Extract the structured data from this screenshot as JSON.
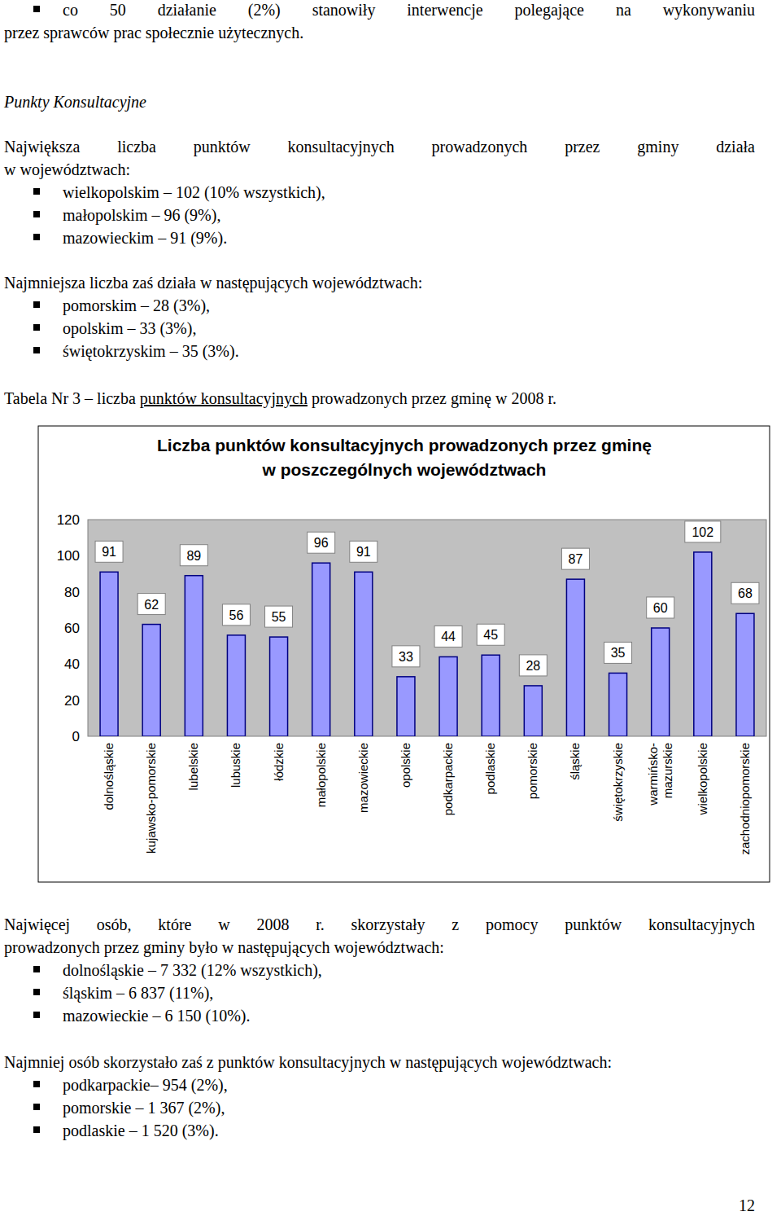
{
  "document": {
    "intro_bullet": [
      "co 50 działanie (2%) stanowiły interwencje polegające na wykonywaniu",
      "przez sprawców prac społecznie użytecznych."
    ],
    "section_title": "Punkty Konsultacyjne",
    "paragraphs": [
      {
        "lines": [
          "Największa liczba punktów konsultacyjnych prowadzonych przez gminy działa",
          "w województwach:"
        ],
        "bullets": [
          "wielkopolskim – 102 (10% wszystkich),",
          "małopolskim – 96 (9%),",
          "mazowieckim – 91 (9%)."
        ]
      },
      {
        "lines": [
          "Najmniejsza liczba zaś działa w następujących województwach:"
        ],
        "bullets": [
          "pomorskim – 28 (3%),",
          "opolskim – 33 (3%),",
          "świętokrzyskim – 35 (3%)."
        ]
      },
      {
        "lines": [
          "Najwięcej osób, które w 2008 r. skorzystały z pomocy punktów konsultacyjnych",
          "prowadzonych przez gminy było w następujących województwach:"
        ],
        "bullets": [
          "dolnośląskie – 7 332 (12% wszystkich),",
          "śląskim – 6 837 (11%),",
          "mazowieckie – 6 150 (10%)."
        ]
      },
      {
        "lines": [
          "Najmniej osób skorzystało zaś z punktów konsultacyjnych w następujących województwach:"
        ],
        "bullets": [
          "podkarpackie– 954 (2%),",
          "pomorskie – 1 367 (2%),",
          "podlaskie – 1 520 (3%)."
        ]
      }
    ],
    "table_caption": {
      "before": "Tabela Nr 3 – liczba ",
      "underlined": "punktów konsultacyjnych",
      "after": " prowadzonych przez gminę w 2008 r."
    },
    "page_number": "12"
  },
  "chart_data": {
    "type": "bar",
    "title": "Liczba punktów konsultacyjnych prowadzonych przez gminę\nw poszczególnych województwach",
    "categories": [
      "dolnośląskie",
      "kujawsko-pomorskie",
      "lubelskie",
      "lubuskie",
      "łódzkie",
      "małopolskie",
      "mazowieckie",
      "opolskie",
      "podkarpackie",
      "podlaskie",
      "pomorskie",
      "śląskie",
      "świętokrzyskie",
      "warmińsko-\nmazurskie",
      "wielkopolskie",
      "zachodniopomorskie"
    ],
    "values": [
      91,
      62,
      89,
      56,
      55,
      96,
      91,
      33,
      44,
      45,
      28,
      87,
      35,
      60,
      102,
      68
    ],
    "color": "#9999ff",
    "ylim": [
      0,
      120
    ],
    "yticks": [
      0,
      20,
      40,
      60,
      80,
      100,
      120
    ],
    "grid": false,
    "data_labels": true
  }
}
